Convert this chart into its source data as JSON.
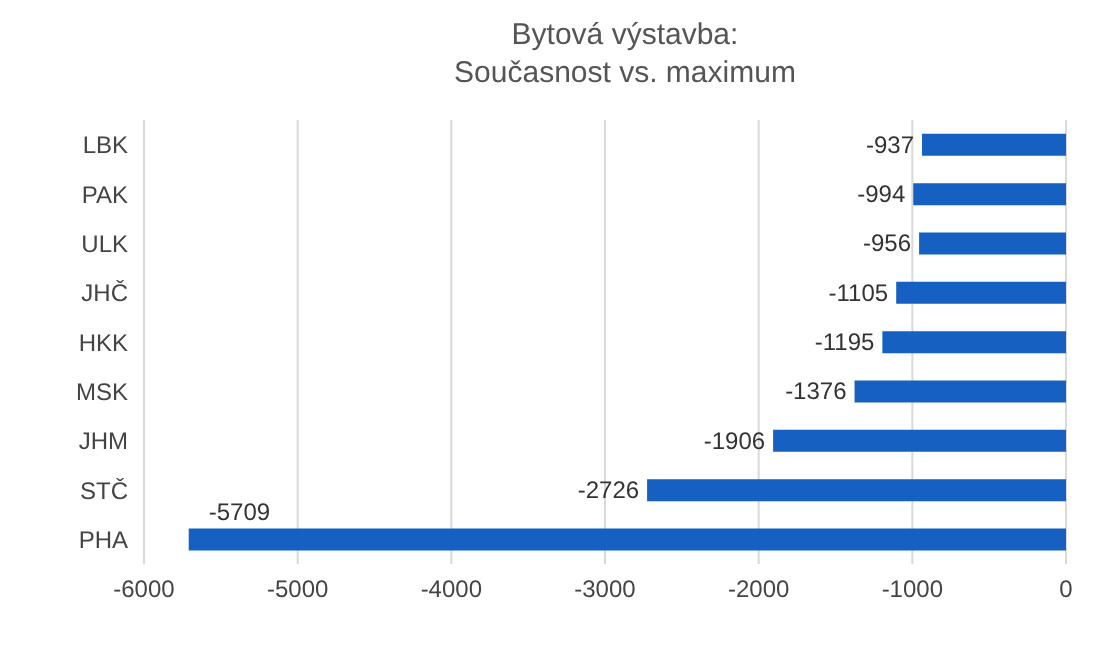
{
  "chart_data": {
    "type": "bar",
    "orientation": "horizontal",
    "title": "Bytová výstavba:\nSoučasnost vs. maximum",
    "categories": [
      "LBK",
      "PAK",
      "ULK",
      "JHČ",
      "HKK",
      "MSK",
      "JHM",
      "STČ",
      "PHA"
    ],
    "values": [
      -937,
      -994,
      -956,
      -1105,
      -1195,
      -1376,
      -1906,
      -2726,
      -5709
    ],
    "color": "#1560c0",
    "xlim": [
      -6000,
      0
    ],
    "xticks": [
      -6000,
      -5000,
      -4000,
      -3000,
      -2000,
      -1000,
      0
    ],
    "grid": "x",
    "data_labels": true
  }
}
